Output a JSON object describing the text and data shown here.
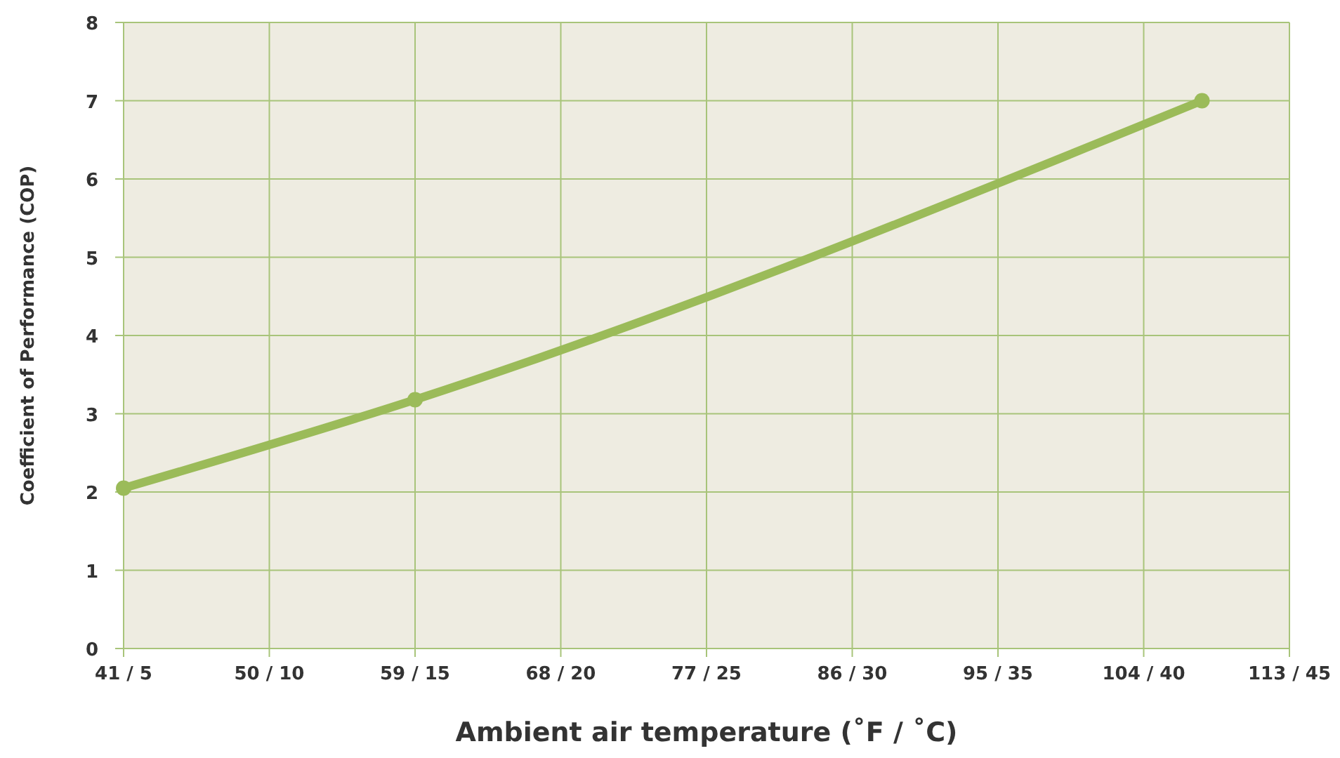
{
  "chart_data": {
    "type": "line",
    "xlabel": "Ambient air temperature (˚F / ˚C)",
    "ylabel": "Coefficient of Performance (COP)",
    "categories": [
      "41 / 5",
      null,
      null,
      null,
      null,
      "50 / 10",
      null,
      null,
      null,
      null,
      "59 / 15",
      null,
      null,
      null,
      null,
      "68 / 20",
      null,
      null,
      null,
      null,
      "77 / 25",
      null,
      null,
      null,
      null,
      "86 / 30",
      null,
      null,
      null,
      null,
      "95 / 35",
      null,
      null,
      null,
      null,
      "104 / 40",
      null,
      null,
      null,
      null,
      "113 / 45"
    ],
    "series": [
      {
        "color": "#9bbb59",
        "values": [
          2.05,
          null,
          null,
          null,
          null,
          null,
          null,
          null,
          null,
          null,
          3.18,
          null,
          null,
          null,
          null,
          null,
          null,
          null,
          null,
          null,
          null,
          null,
          null,
          null,
          null,
          null,
          null,
          null,
          null,
          null,
          null,
          null,
          null,
          null,
          null,
          null,
          null,
          7.0,
          null,
          null,
          null
        ]
      }
    ],
    "ylim": [
      0,
      8
    ],
    "yticks": [
      0,
      1,
      2,
      3,
      4,
      5,
      6,
      7,
      8
    ],
    "grid": true,
    "marker": "circle",
    "line_style": "solid"
  }
}
